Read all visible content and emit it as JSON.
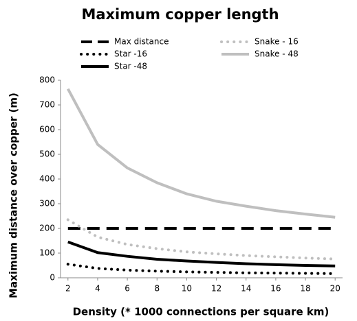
{
  "chart_data": {
    "type": "line",
    "title": "Maximum copper length",
    "x_label": "Density (* 1000 connections per square km)",
    "y_label": "Maximum distance over copper (m)",
    "x": [
      2,
      4,
      6,
      8,
      10,
      12,
      14,
      16,
      18,
      20
    ],
    "xlim": [
      1.5,
      20.5
    ],
    "xticks": [
      2,
      4,
      6,
      8,
      10,
      12,
      14,
      16,
      18,
      20
    ],
    "ylim": [
      0,
      800
    ],
    "yticks": [
      0,
      100,
      200,
      300,
      400,
      500,
      600,
      700,
      800
    ],
    "grid": false,
    "legend": "top",
    "series": [
      {
        "name": "Max distance",
        "color": "#000000",
        "style": "dashed",
        "values": [
          200,
          200,
          200,
          200,
          200,
          200,
          200,
          200,
          200,
          200
        ]
      },
      {
        "name": "Star -16",
        "color": "#000000",
        "style": "dotted",
        "values": [
          55,
          38,
          31,
          27,
          24,
          22,
          20,
          19,
          18,
          17
        ]
      },
      {
        "name": "Star -48",
        "color": "#000000",
        "style": "solid",
        "values": [
          145,
          102,
          87,
          75,
          68,
          62,
          57,
          53,
          50,
          48
        ]
      },
      {
        "name": "Snake - 16",
        "color": "#bfbfbf",
        "style": "dotted",
        "values": [
          235,
          165,
          135,
          118,
          105,
          97,
          90,
          85,
          80,
          76
        ]
      },
      {
        "name": "Snake - 48",
        "color": "#bfbfbf",
        "style": "solid",
        "values": [
          765,
          540,
          445,
          385,
          340,
          310,
          290,
          272,
          258,
          245
        ]
      }
    ]
  }
}
